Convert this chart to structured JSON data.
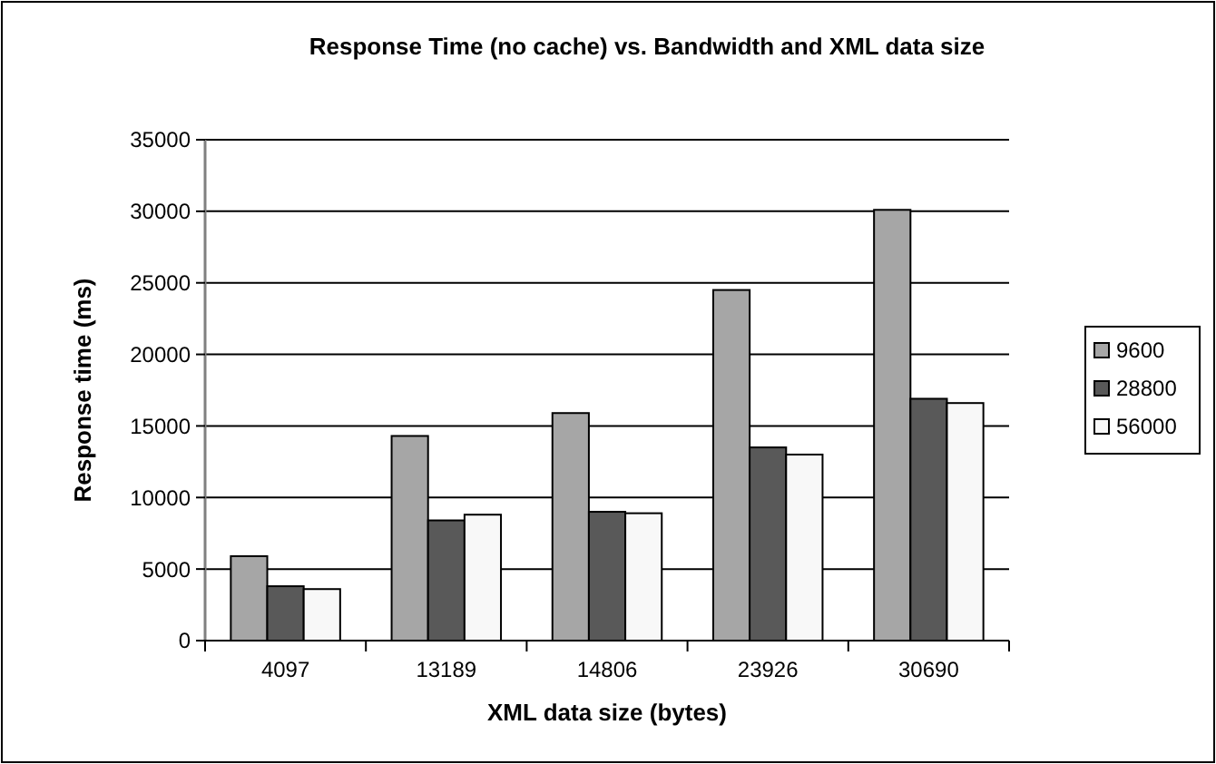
{
  "chart_data": {
    "type": "bar",
    "title": "Response Time (no cache) vs. Bandwidth and XML data size",
    "xlabel": "XML data size (bytes)",
    "ylabel": "Response time (ms)",
    "categories": [
      "4097",
      "13189",
      "14806",
      "23926",
      "30690"
    ],
    "series": [
      {
        "name": "9600",
        "color": "#a6a6a6",
        "values": [
          5900,
          14300,
          15900,
          24500,
          30100
        ]
      },
      {
        "name": "28800",
        "color": "#595959",
        "values": [
          3800,
          8400,
          9000,
          13500,
          16900
        ]
      },
      {
        "name": "56000",
        "color": "#f8f8f8",
        "values": [
          3600,
          8800,
          8900,
          13000,
          16600
        ]
      }
    ],
    "ylim": [
      0,
      35000
    ],
    "yticks": [
      0,
      5000,
      10000,
      15000,
      20000,
      25000,
      30000,
      35000
    ],
    "grid": "y",
    "legend": "right"
  }
}
